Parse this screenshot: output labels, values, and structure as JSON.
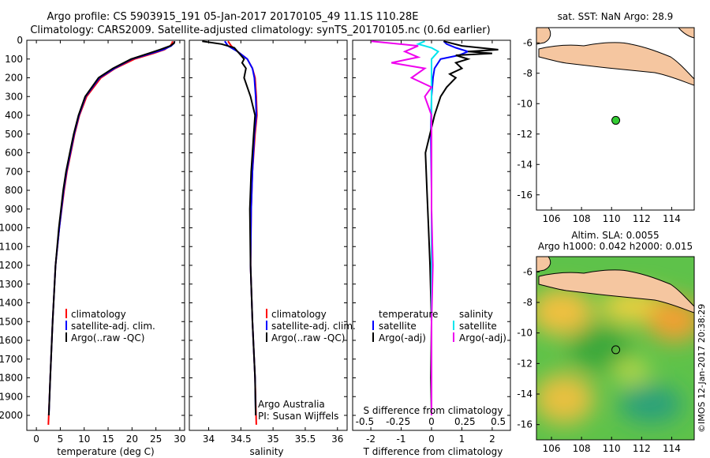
{
  "header": {
    "line1": "Argo profile: CS 5903915_191 05-Jan-2017 20170105_49 11.1S 110.28E",
    "line2": "Climatology: CARS2009. Satellite-adjusted climatology: synTS_20170105.nc (0.6d earlier)"
  },
  "colors": {
    "climatology": "#ff0000",
    "satellite": "#0000ff",
    "argo": "#000000",
    "salinity_sat": "#00e5ee",
    "salinity_argo": "#ee00ee",
    "land": "#f5c6a0",
    "marker": "#33cc33"
  },
  "chart_data": [
    {
      "type": "line",
      "id": "temperature",
      "xlabel": "temperature (deg C)",
      "ylabel": "",
      "xlim": [
        -2,
        31
      ],
      "ylim": [
        2080,
        0
      ],
      "xticks": [
        "0",
        "5",
        "10",
        "15",
        "20",
        "25",
        "30"
      ],
      "yticks": [
        "0",
        "100",
        "200",
        "300",
        "400",
        "500",
        "600",
        "700",
        "800",
        "900",
        "1000",
        "1100",
        "1200",
        "1300",
        "1400",
        "1500",
        "1600",
        "1700",
        "1800",
        "1900",
        "2000"
      ],
      "legend": [
        "climatology",
        "satellite-adj. clim.",
        "Argo(..raw -QC)"
      ],
      "series": [
        {
          "name": "climatology",
          "depth": [
            5,
            15,
            30,
            50,
            70,
            100,
            150,
            200,
            300,
            400,
            500,
            600,
            700,
            800,
            1000,
            1200,
            1500,
            1800,
            2050
          ],
          "values": [
            28.5,
            28.4,
            28.0,
            26.8,
            24.5,
            20.5,
            16.5,
            13.5,
            10.5,
            9.0,
            8.0,
            7.2,
            6.4,
            5.8,
            4.8,
            4.0,
            3.4,
            2.9,
            2.5
          ]
        },
        {
          "name": "satellite",
          "depth": [
            5,
            15,
            30,
            50,
            70,
            100,
            150,
            200,
            300,
            400,
            500,
            600,
            700,
            800,
            1000,
            1200,
            1500,
            1800,
            2000
          ],
          "values": [
            28.9,
            28.8,
            28.2,
            26.5,
            24.0,
            20.0,
            16.3,
            13.2,
            10.3,
            8.9,
            7.9,
            7.1,
            6.3,
            5.7,
            4.8,
            4.0,
            3.4,
            2.9,
            2.6
          ]
        },
        {
          "name": "argo",
          "depth": [
            5,
            15,
            30,
            50,
            70,
            100,
            150,
            200,
            300,
            400,
            500,
            600,
            700,
            800,
            1000,
            1200,
            1500,
            1800,
            2000
          ],
          "values": [
            28.9,
            28.8,
            28.0,
            25.8,
            23.5,
            19.8,
            16.0,
            13.0,
            10.2,
            8.8,
            7.8,
            7.0,
            6.2,
            5.6,
            4.7,
            4.0,
            3.4,
            2.9,
            2.6
          ]
        }
      ]
    },
    {
      "type": "line",
      "id": "salinity",
      "xlabel": "salinity",
      "xlim": [
        33.7,
        36.15
      ],
      "ylim": [
        2080,
        0
      ],
      "xticks": [
        "34",
        "34.5",
        "35",
        "35.5",
        "36"
      ],
      "legend": [
        "climatology",
        "satellite-adj. clim.",
        "Argo(..raw -QC)"
      ],
      "annotation": [
        "Argo Australia",
        "PI: Susan Wijffels"
      ],
      "series": [
        {
          "name": "climatology",
          "depth": [
            5,
            30,
            60,
            100,
            150,
            200,
            300,
            400,
            500,
            700,
            900,
            1200,
            1500,
            1800,
            2050
          ],
          "values": [
            34.3,
            34.35,
            34.45,
            34.6,
            34.68,
            34.72,
            34.74,
            34.75,
            34.72,
            34.68,
            34.66,
            34.65,
            34.68,
            34.72,
            34.74
          ]
        },
        {
          "name": "satellite",
          "depth": [
            5,
            30,
            60,
            100,
            150,
            200,
            300,
            400,
            500,
            700,
            900,
            1200,
            1500,
            1800,
            2000
          ],
          "values": [
            34.25,
            34.3,
            34.45,
            34.6,
            34.68,
            34.71,
            34.73,
            34.74,
            34.71,
            34.68,
            34.66,
            34.65,
            34.68,
            34.72,
            34.73
          ]
        },
        {
          "name": "argo",
          "depth": [
            5,
            20,
            40,
            60,
            80,
            100,
            120,
            150,
            200,
            250,
            300,
            400,
            500,
            700,
            900,
            1200,
            1500,
            1800,
            2000
          ],
          "values": [
            33.9,
            34.2,
            34.4,
            34.45,
            34.5,
            34.55,
            34.52,
            34.58,
            34.55,
            34.6,
            34.65,
            34.72,
            34.7,
            34.66,
            34.64,
            34.65,
            34.68,
            34.72,
            34.73
          ]
        }
      ]
    },
    {
      "type": "line",
      "id": "difference",
      "xlabel": "T difference from climatology",
      "xlabel_top": "S difference from climatology",
      "xlim": [
        -2.6,
        2.6
      ],
      "ylim": [
        2080,
        0
      ],
      "xticks": [
        "-2",
        "-1",
        "0",
        "1",
        "2"
      ],
      "xticks_top": [
        "-0.5",
        "-0.25",
        "0",
        "0.25",
        "0.5"
      ],
      "legend_left": [
        "temperature",
        "satellite",
        "Argo(-adj)"
      ],
      "legend_right": [
        "salinity",
        "satellite",
        "Argo(-adj)"
      ],
      "series": [
        {
          "name": "temperature satellite",
          "depth": [
            5,
            20,
            40,
            60,
            80,
            100,
            150,
            200,
            300,
            500,
            800,
            1200,
            1600,
            2000
          ],
          "values": [
            0.4,
            0.5,
            0.8,
            1.2,
            0.9,
            0.3,
            0.1,
            0.05,
            0.0,
            -0.02,
            0.0,
            0.0,
            0.0,
            0.0
          ]
        },
        {
          "name": "temperature argo",
          "depth": [
            5,
            30,
            50,
            60,
            70,
            80,
            100,
            120,
            150,
            180,
            200,
            250,
            300,
            400,
            600,
            800,
            1000,
            1200,
            1500,
            1800,
            2000
          ],
          "values": [
            0.4,
            1.0,
            2.2,
            1.2,
            2.0,
            0.8,
            1.2,
            0.8,
            1.0,
            0.6,
            0.8,
            0.5,
            0.3,
            0.1,
            -0.2,
            -0.15,
            -0.1,
            -0.05,
            0.0,
            -0.02,
            0.0
          ]
        },
        {
          "name": "salinity satellite",
          "depth": [
            5,
            20,
            40,
            60,
            100,
            200,
            400,
            800,
            1200,
            2000
          ],
          "values": [
            -0.05,
            -0.1,
            0.0,
            0.05,
            0.0,
            0.0,
            0.0,
            0.0,
            0.0,
            0.0
          ]
        },
        {
          "name": "salinity argo",
          "depth": [
            5,
            30,
            60,
            90,
            120,
            150,
            200,
            250,
            300,
            400,
            600,
            900,
            1200,
            1500,
            1800,
            2000
          ],
          "values": [
            -0.45,
            -0.1,
            -0.2,
            -0.1,
            -0.3,
            -0.05,
            -0.15,
            0.0,
            -0.05,
            0.0,
            0.0,
            0.0,
            0.01,
            0.0,
            0.0,
            0.0
          ]
        }
      ]
    },
    {
      "type": "scatter",
      "id": "sst-map",
      "title": "sat. SST: NaN Argo: 28.9",
      "xlim": [
        105,
        115.5
      ],
      "ylim": [
        -17,
        -5
      ],
      "xticks": [
        "106",
        "108",
        "110",
        "112",
        "114"
      ],
      "yticks": [
        "-6",
        "-8",
        "-10",
        "-12",
        "-14",
        "-16"
      ],
      "point": {
        "lon": 110.28,
        "lat": -11.1
      }
    },
    {
      "type": "heatmap",
      "id": "sla-map",
      "title_line1": "Altim. SLA: 0.0055",
      "title_line2": "Argo h1000: 0.042 h2000: 0.015",
      "xlim": [
        105,
        115.5
      ],
      "ylim": [
        -17,
        -5
      ],
      "xticks": [
        "106",
        "108",
        "110",
        "112",
        "114"
      ],
      "yticks": [
        "-6",
        "-8",
        "-10",
        "-12",
        "-14",
        "-16"
      ],
      "point": {
        "lon": 110.28,
        "lat": -11.1
      }
    }
  ],
  "footer": {
    "credit": "©IMOS 12-Jan-2017 20:38:29"
  }
}
